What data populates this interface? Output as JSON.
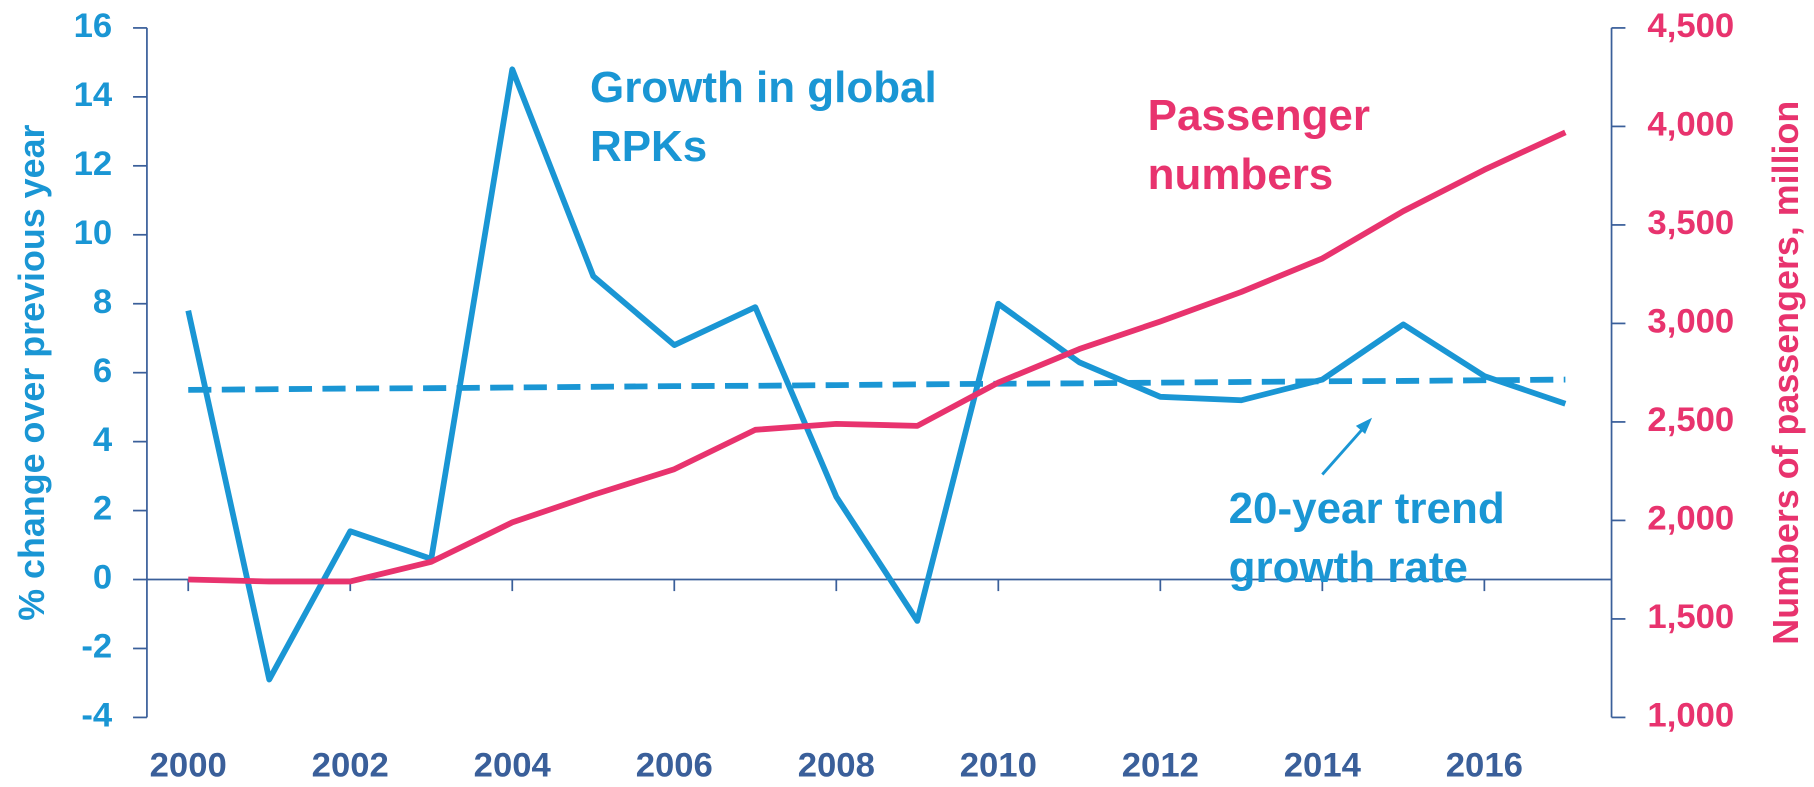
{
  "chart_data": {
    "type": "line",
    "x": [
      2000,
      2001,
      2002,
      2003,
      2004,
      2005,
      2006,
      2007,
      2008,
      2009,
      2010,
      2011,
      2012,
      2013,
      2014,
      2015,
      2016,
      2017
    ],
    "xlim": [
      1999.49,
      2017.57
    ],
    "xticks": [
      2000,
      2002,
      2004,
      2006,
      2008,
      2010,
      2012,
      2014,
      2016
    ],
    "ylim": [
      -4,
      16
    ],
    "yticks": [
      -4,
      -2,
      0,
      2,
      4,
      6,
      8,
      10,
      12,
      14,
      16
    ],
    "y2lim": [
      1000,
      4500
    ],
    "y2ticks": [
      {
        "value": 1000,
        "label": "1,000"
      },
      {
        "value": 1500,
        "label": "1,500"
      },
      {
        "value": 2000,
        "label": "2,000"
      },
      {
        "value": 2500,
        "label": "2,500"
      },
      {
        "value": 3000,
        "label": "3,000"
      },
      {
        "value": 3500,
        "label": "3,500"
      },
      {
        "value": 4000,
        "label": "4,000"
      },
      {
        "value": 4500,
        "label": "4,500"
      }
    ],
    "ylabel": "% change over previous year",
    "y2label": "Numbers of passengers, million",
    "series": [
      {
        "name": [
          "Growth in global",
          "RPKs"
        ],
        "color": "#1a96d4",
        "values": [
          7.8,
          -2.9,
          1.4,
          0.6,
          14.8,
          8.8,
          6.8,
          7.9,
          2.4,
          -1.2,
          8.0,
          6.3,
          5.3,
          5.2,
          5.8,
          7.4,
          5.9,
          5.1
        ]
      },
      {
        "name": [
          "20-year trend",
          "growth rate"
        ],
        "color": "#1a96d4",
        "dashed": true,
        "values": [
          5.5,
          5.52,
          5.54,
          5.55,
          5.57,
          5.59,
          5.61,
          5.62,
          5.64,
          5.66,
          5.68,
          5.69,
          5.71,
          5.73,
          5.75,
          5.76,
          5.78,
          5.8
        ]
      },
      {
        "name": [
          "Passenger",
          "numbers"
        ],
        "color": "#e8336e",
        "axis": "y2",
        "values": [
          1700,
          1690,
          1690,
          1790,
          1990,
          2130,
          2260,
          2460,
          2490,
          2480,
          2700,
          2870,
          3010,
          3160,
          3330,
          3570,
          3780,
          3970
        ]
      }
    ]
  }
}
